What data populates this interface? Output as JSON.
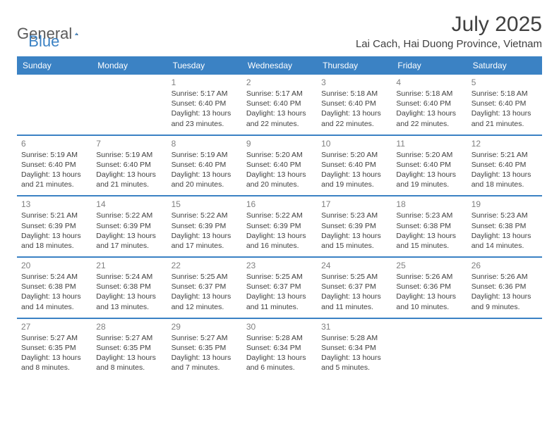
{
  "logo": {
    "part1": "General",
    "part2": "Blue"
  },
  "title": "July 2025",
  "location": "Lai Cach, Hai Duong Province, Vietnam",
  "colors": {
    "header_bg": "#3b82c4",
    "header_text": "#ffffff",
    "daynum": "#808080",
    "body_text": "#404040",
    "logo_gray": "#5a5a5a",
    "logo_blue": "#3b82c4"
  },
  "day_headers": [
    "Sunday",
    "Monday",
    "Tuesday",
    "Wednesday",
    "Thursday",
    "Friday",
    "Saturday"
  ],
  "weeks": [
    [
      null,
      null,
      {
        "n": "1",
        "sr": "5:17 AM",
        "ss": "6:40 PM",
        "dl": "13 hours and 23 minutes."
      },
      {
        "n": "2",
        "sr": "5:17 AM",
        "ss": "6:40 PM",
        "dl": "13 hours and 22 minutes."
      },
      {
        "n": "3",
        "sr": "5:18 AM",
        "ss": "6:40 PM",
        "dl": "13 hours and 22 minutes."
      },
      {
        "n": "4",
        "sr": "5:18 AM",
        "ss": "6:40 PM",
        "dl": "13 hours and 22 minutes."
      },
      {
        "n": "5",
        "sr": "5:18 AM",
        "ss": "6:40 PM",
        "dl": "13 hours and 21 minutes."
      }
    ],
    [
      {
        "n": "6",
        "sr": "5:19 AM",
        "ss": "6:40 PM",
        "dl": "13 hours and 21 minutes."
      },
      {
        "n": "7",
        "sr": "5:19 AM",
        "ss": "6:40 PM",
        "dl": "13 hours and 21 minutes."
      },
      {
        "n": "8",
        "sr": "5:19 AM",
        "ss": "6:40 PM",
        "dl": "13 hours and 20 minutes."
      },
      {
        "n": "9",
        "sr": "5:20 AM",
        "ss": "6:40 PM",
        "dl": "13 hours and 20 minutes."
      },
      {
        "n": "10",
        "sr": "5:20 AM",
        "ss": "6:40 PM",
        "dl": "13 hours and 19 minutes."
      },
      {
        "n": "11",
        "sr": "5:20 AM",
        "ss": "6:40 PM",
        "dl": "13 hours and 19 minutes."
      },
      {
        "n": "12",
        "sr": "5:21 AM",
        "ss": "6:40 PM",
        "dl": "13 hours and 18 minutes."
      }
    ],
    [
      {
        "n": "13",
        "sr": "5:21 AM",
        "ss": "6:39 PM",
        "dl": "13 hours and 18 minutes."
      },
      {
        "n": "14",
        "sr": "5:22 AM",
        "ss": "6:39 PM",
        "dl": "13 hours and 17 minutes."
      },
      {
        "n": "15",
        "sr": "5:22 AM",
        "ss": "6:39 PM",
        "dl": "13 hours and 17 minutes."
      },
      {
        "n": "16",
        "sr": "5:22 AM",
        "ss": "6:39 PM",
        "dl": "13 hours and 16 minutes."
      },
      {
        "n": "17",
        "sr": "5:23 AM",
        "ss": "6:39 PM",
        "dl": "13 hours and 15 minutes."
      },
      {
        "n": "18",
        "sr": "5:23 AM",
        "ss": "6:38 PM",
        "dl": "13 hours and 15 minutes."
      },
      {
        "n": "19",
        "sr": "5:23 AM",
        "ss": "6:38 PM",
        "dl": "13 hours and 14 minutes."
      }
    ],
    [
      {
        "n": "20",
        "sr": "5:24 AM",
        "ss": "6:38 PM",
        "dl": "13 hours and 14 minutes."
      },
      {
        "n": "21",
        "sr": "5:24 AM",
        "ss": "6:38 PM",
        "dl": "13 hours and 13 minutes."
      },
      {
        "n": "22",
        "sr": "5:25 AM",
        "ss": "6:37 PM",
        "dl": "13 hours and 12 minutes."
      },
      {
        "n": "23",
        "sr": "5:25 AM",
        "ss": "6:37 PM",
        "dl": "13 hours and 11 minutes."
      },
      {
        "n": "24",
        "sr": "5:25 AM",
        "ss": "6:37 PM",
        "dl": "13 hours and 11 minutes."
      },
      {
        "n": "25",
        "sr": "5:26 AM",
        "ss": "6:36 PM",
        "dl": "13 hours and 10 minutes."
      },
      {
        "n": "26",
        "sr": "5:26 AM",
        "ss": "6:36 PM",
        "dl": "13 hours and 9 minutes."
      }
    ],
    [
      {
        "n": "27",
        "sr": "5:27 AM",
        "ss": "6:35 PM",
        "dl": "13 hours and 8 minutes."
      },
      {
        "n": "28",
        "sr": "5:27 AM",
        "ss": "6:35 PM",
        "dl": "13 hours and 8 minutes."
      },
      {
        "n": "29",
        "sr": "5:27 AM",
        "ss": "6:35 PM",
        "dl": "13 hours and 7 minutes."
      },
      {
        "n": "30",
        "sr": "5:28 AM",
        "ss": "6:34 PM",
        "dl": "13 hours and 6 minutes."
      },
      {
        "n": "31",
        "sr": "5:28 AM",
        "ss": "6:34 PM",
        "dl": "13 hours and 5 minutes."
      },
      null,
      null
    ]
  ],
  "labels": {
    "sunrise": "Sunrise:",
    "sunset": "Sunset:",
    "daylight": "Daylight:"
  }
}
